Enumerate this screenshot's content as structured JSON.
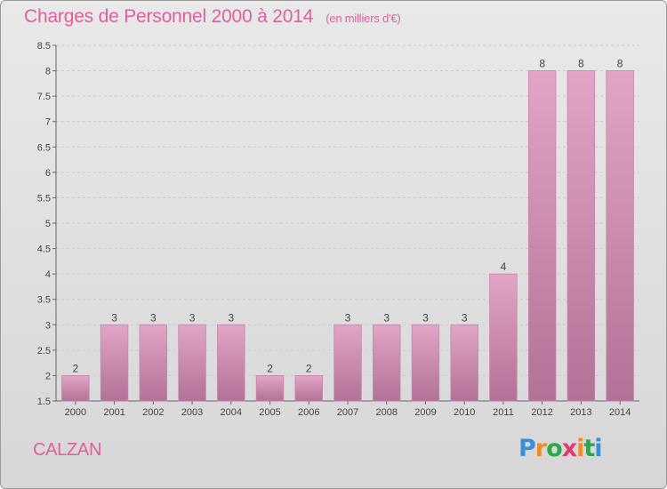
{
  "page": {
    "commune": "CALZAN",
    "brand": "Proxiti",
    "colors": {
      "accent": "#e0609a",
      "bar_top": "#e2a5c6",
      "bar_bottom": "#b27196",
      "background": "#e3e3e3"
    }
  },
  "chart_data": {
    "type": "bar",
    "title": "Charges de Personnel 2000 à 2014",
    "subtitle": "(en milliers d'€)",
    "categories": [
      "2000",
      "2001",
      "2002",
      "2003",
      "2004",
      "2005",
      "2006",
      "2007",
      "2008",
      "2009",
      "2010",
      "2011",
      "2012",
      "2013",
      "2014"
    ],
    "values": [
      2,
      3,
      3,
      3,
      3,
      2,
      2,
      3,
      3,
      3,
      3,
      4,
      8,
      8,
      8
    ],
    "data_labels": [
      "2",
      "3",
      "3",
      "3",
      "3",
      "2",
      "2",
      "3",
      "3",
      "3",
      "3",
      "4",
      "8",
      "8",
      "8"
    ],
    "ylim": [
      1.5,
      8.5
    ],
    "yticks": [
      1.5,
      2,
      2.5,
      3,
      3.5,
      4,
      4.5,
      5,
      5.5,
      6,
      6.5,
      7,
      7.5,
      8,
      8.5
    ],
    "ytick_labels": [
      "1.5",
      "2",
      "2.5",
      "3",
      "3.5",
      "4",
      "4.5",
      "5",
      "5.5",
      "6",
      "6.5",
      "7",
      "7.5",
      "8",
      "8.5"
    ],
    "grid": true,
    "legend": "none"
  }
}
